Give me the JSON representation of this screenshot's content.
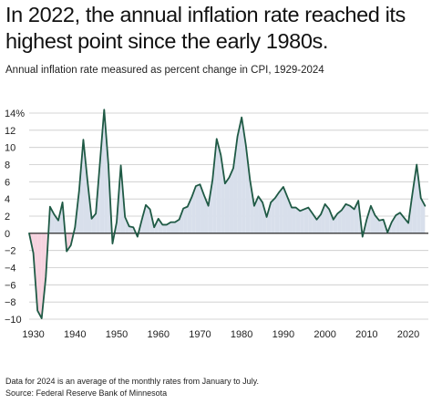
{
  "header": {
    "title": "In 2022, the annual inflation rate reached its highest point since the early 1980s.",
    "subtitle": "Annual inflation rate measured as percent change in CPI, 1929-2024"
  },
  "footer": {
    "note": "Data for 2024 is an average of the monthly rates from January to July.",
    "source": "Source: Federal Reserve Bank of Minnesota"
  },
  "colors": {
    "line": "#1f5a45",
    "fill_positive": "#d8dfeb",
    "fill_negative": "#f6d3df",
    "grid": "#c9c9c9",
    "zero_line": "#111111"
  },
  "chart_data": {
    "type": "area",
    "title": "In 2022, the annual inflation rate reached its highest point since the early 1980s.",
    "subtitle": "Annual inflation rate measured as percent change in CPI, 1929-2024",
    "xlabel": "",
    "ylabel": "",
    "xlim": [
      1929,
      2024
    ],
    "ylim": [
      -10,
      14
    ],
    "grid": true,
    "legend": "none",
    "y_ticks": [
      {
        "value": 14,
        "label": "14%"
      },
      {
        "value": 12,
        "label": "12"
      },
      {
        "value": 10,
        "label": "10"
      },
      {
        "value": 8,
        "label": "8"
      },
      {
        "value": 6,
        "label": "6"
      },
      {
        "value": 4,
        "label": "4"
      },
      {
        "value": 2,
        "label": "2"
      },
      {
        "value": 0,
        "label": "0"
      },
      {
        "value": -2,
        "label": "−2"
      },
      {
        "value": -4,
        "label": "−4"
      },
      {
        "value": -6,
        "label": "−6"
      },
      {
        "value": -8,
        "label": "−8"
      },
      {
        "value": -10,
        "label": "−10"
      }
    ],
    "x_ticks": [
      {
        "value": 1930,
        "label": "1930"
      },
      {
        "value": 1940,
        "label": "1940"
      },
      {
        "value": 1950,
        "label": "1950"
      },
      {
        "value": 1960,
        "label": "1960"
      },
      {
        "value": 1970,
        "label": "1970"
      },
      {
        "value": 1980,
        "label": "1980"
      },
      {
        "value": 1990,
        "label": "1990"
      },
      {
        "value": 2000,
        "label": "2000"
      },
      {
        "value": 2010,
        "label": "2010"
      },
      {
        "value": 2020,
        "label": "2020"
      }
    ],
    "series": [
      {
        "x": [
          1929,
          1930,
          1931,
          1932,
          1933,
          1934,
          1935,
          1936,
          1937,
          1938,
          1939,
          1940,
          1941,
          1942,
          1943,
          1944,
          1945,
          1946,
          1947,
          1948,
          1949,
          1950,
          1951,
          1952,
          1953,
          1954,
          1955,
          1956,
          1957,
          1958,
          1959,
          1960,
          1961,
          1962,
          1963,
          1964,
          1965,
          1966,
          1967,
          1968,
          1969,
          1970,
          1971,
          1972,
          1973,
          1974,
          1975,
          1976,
          1977,
          1978,
          1979,
          1980,
          1981,
          1982,
          1983,
          1984,
          1985,
          1986,
          1987,
          1988,
          1989,
          1990,
          1991,
          1992,
          1993,
          1994,
          1995,
          1996,
          1997,
          1998,
          1999,
          2000,
          2001,
          2002,
          2003,
          2004,
          2005,
          2006,
          2007,
          2008,
          2009,
          2010,
          2011,
          2012,
          2013,
          2014,
          2015,
          2016,
          2017,
          2018,
          2019,
          2020,
          2021,
          2022,
          2023,
          2024
        ],
        "values": [
          0.0,
          -2.3,
          -9.0,
          -9.9,
          -5.1,
          3.1,
          2.2,
          1.5,
          3.6,
          -2.1,
          -1.4,
          0.7,
          5.0,
          10.9,
          6.1,
          1.7,
          2.3,
          8.3,
          14.4,
          8.1,
          -1.2,
          1.3,
          7.9,
          1.9,
          0.8,
          0.7,
          -0.4,
          1.5,
          3.3,
          2.8,
          0.7,
          1.7,
          1.0,
          1.0,
          1.3,
          1.3,
          1.6,
          2.9,
          3.1,
          4.2,
          5.5,
          5.7,
          4.4,
          3.2,
          6.2,
          11.0,
          9.1,
          5.8,
          6.5,
          7.6,
          11.3,
          13.5,
          10.3,
          6.2,
          3.2,
          4.3,
          3.6,
          1.9,
          3.6,
          4.1,
          4.8,
          5.4,
          4.2,
          3.0,
          3.0,
          2.6,
          2.8,
          3.0,
          2.3,
          1.6,
          2.2,
          3.4,
          2.8,
          1.6,
          2.3,
          2.7,
          3.4,
          3.2,
          2.8,
          3.8,
          -0.4,
          1.6,
          3.2,
          2.1,
          1.5,
          1.6,
          0.1,
          1.3,
          2.1,
          2.4,
          1.8,
          1.2,
          4.7,
          8.0,
          4.1,
          3.2
        ]
      }
    ]
  }
}
